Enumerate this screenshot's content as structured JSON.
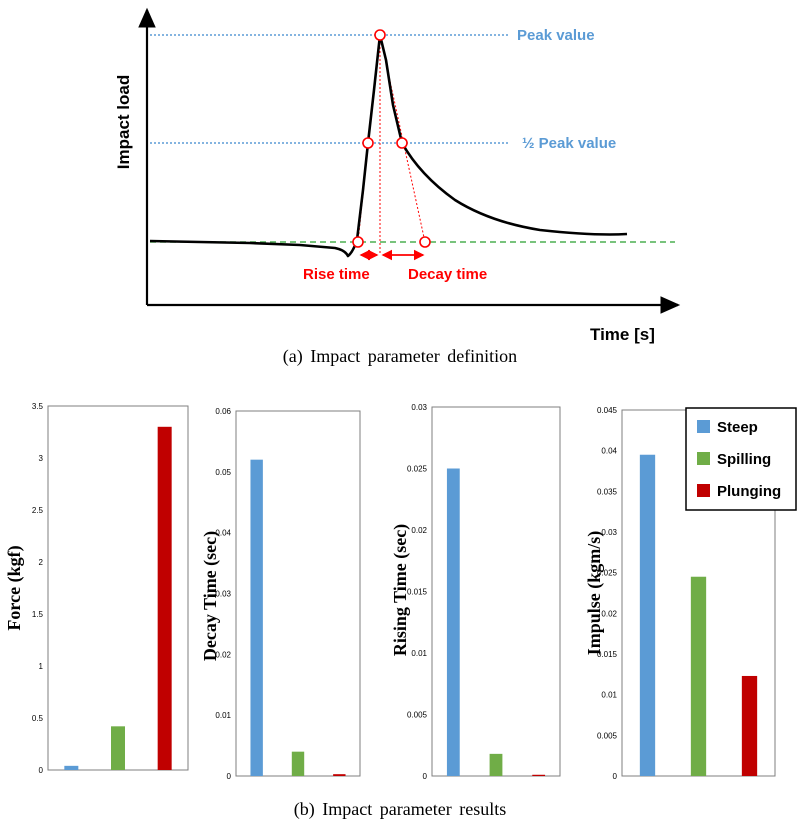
{
  "colors": {
    "steep": "#5b9bd5",
    "spilling": "#70ad47",
    "plunging": "#c00000",
    "guide_blue": "#5b9bd5",
    "annot_red": "#ff0000",
    "baseline_green": "#4caf50",
    "curve": "#000000"
  },
  "chart_data": [
    {
      "type": "line",
      "panel": "a",
      "caption": "(a) Impact parameter definition",
      "xlabel": "Time [s]",
      "ylabel": "Impact load",
      "annotations": {
        "peak": "Peak value",
        "half_peak": "½ Peak value",
        "rise": "Rise time",
        "decay": "Decay time"
      },
      "x": [
        0,
        5,
        10,
        15,
        20,
        25,
        30,
        35,
        40,
        42,
        44,
        46,
        48,
        50,
        52,
        54,
        56,
        58,
        60,
        64,
        68,
        72,
        76,
        80,
        84,
        88,
        92,
        96,
        100
      ],
      "y": [
        0.05,
        0.05,
        0.045,
        0.04,
        0.035,
        0.02,
        0.0,
        0.15,
        0.6,
        0.95,
        1.0,
        0.75,
        0.52,
        0.45,
        0.38,
        0.33,
        0.28,
        0.25,
        0.22,
        0.18,
        0.14,
        0.12,
        0.1,
        0.09,
        0.09,
        0.09,
        0.08,
        0.06,
        0.04
      ]
    },
    {
      "type": "bar",
      "panel": "b1",
      "categories": [
        "Steep",
        "Spilling",
        "Plunging"
      ],
      "values": [
        0.04,
        0.42,
        3.3
      ],
      "ylabel": "Force (kgf)",
      "ylim": [
        0,
        3.5
      ],
      "yticks": [
        "0",
        "0.5",
        "1",
        "1.5",
        "2",
        "2.5",
        "3",
        "3.5"
      ]
    },
    {
      "type": "bar",
      "panel": "b2",
      "categories": [
        "Steep",
        "Spilling",
        "Plunging"
      ],
      "values": [
        0.052,
        0.004,
        0.0003
      ],
      "ylabel": "Decay Time (sec)",
      "ylim": [
        0,
        0.06
      ],
      "yticks": [
        "0",
        "0.01",
        "0.02",
        "0.03",
        "0.04",
        "0.05",
        "0.06"
      ]
    },
    {
      "type": "bar",
      "panel": "b3",
      "categories": [
        "Steep",
        "Spilling",
        "Plunging"
      ],
      "values": [
        0.025,
        0.0018,
        0.0001
      ],
      "ylabel": "Rising Time (sec)",
      "ylim": [
        0,
        0.03
      ],
      "yticks": [
        "0",
        "0.005",
        "0.01",
        "0.015",
        "0.02",
        "0.025",
        "0.03"
      ]
    },
    {
      "type": "bar",
      "panel": "b4",
      "categories": [
        "Steep",
        "Spilling",
        "Plunging"
      ],
      "values": [
        0.0395,
        0.0245,
        0.0123
      ],
      "ylabel": "Impulse (kgm/s)",
      "ylim": [
        0,
        0.045
      ],
      "yticks": [
        "0",
        "0.005",
        "0.01",
        "0.015",
        "0.02",
        "0.025",
        "0.03",
        "0.035",
        "0.04",
        "0.045"
      ]
    }
  ],
  "legend": {
    "items": [
      {
        "label": "Steep",
        "color": "#5b9bd5"
      },
      {
        "label": "Spilling",
        "color": "#70ad47"
      },
      {
        "label": "Plunging",
        "color": "#c00000"
      }
    ]
  },
  "caption_b": "(b) Impact parameter results"
}
